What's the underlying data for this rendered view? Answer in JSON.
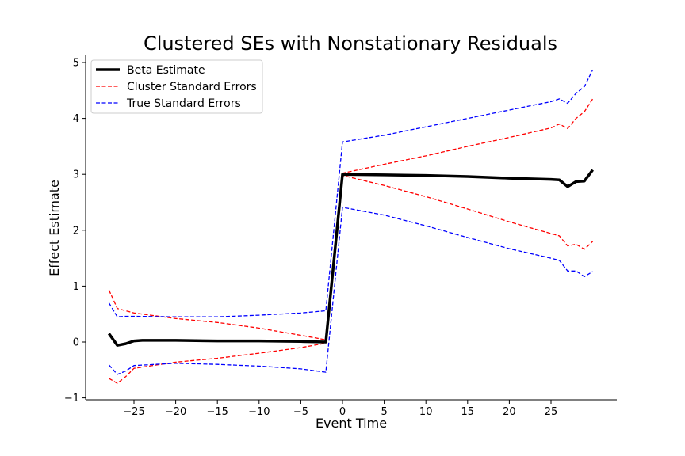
{
  "chart_data": {
    "type": "line",
    "title": "Clustered SEs with Nonstationary Residuals",
    "xlabel": "Event Time",
    "ylabel": "Effect Estimate",
    "xlim": [
      -30,
      33
    ],
    "ylim": [
      -1,
      5.1
    ],
    "xticks": [
      -25,
      -20,
      -15,
      -10,
      -5,
      0,
      5,
      10,
      15,
      20,
      25
    ],
    "xtick_labels": [
      "−25",
      "−20",
      "−15",
      "−10",
      "−5",
      "0",
      "5",
      "10",
      "15",
      "20",
      "25"
    ],
    "yticks": [
      -1,
      0,
      1,
      2,
      3,
      4,
      5
    ],
    "ytick_labels": [
      "−1",
      "0",
      "1",
      "2",
      "3",
      "4",
      "5"
    ],
    "grid": false,
    "legend_position": "top-left",
    "series": [
      {
        "name": "Beta Estimate",
        "color": "#000000",
        "style": "solid",
        "x": [
          -28,
          -27,
          -26,
          -25,
          -24,
          -20,
          -15,
          -10,
          -5,
          -2,
          0,
          5,
          10,
          15,
          20,
          25,
          26,
          27,
          28,
          29,
          30
        ],
        "y": [
          0.15,
          -0.06,
          -0.03,
          0.02,
          0.03,
          0.03,
          0.02,
          0.02,
          0.01,
          0.0,
          3.0,
          2.99,
          2.98,
          2.96,
          2.93,
          2.91,
          2.9,
          2.78,
          2.87,
          2.88,
          3.08
        ]
      },
      {
        "name": "Cluster Standard Errors",
        "color": "#ff0000",
        "style": "dashed",
        "x": [
          -28,
          -27,
          -26,
          -25,
          -20,
          -15,
          -10,
          -5,
          -2,
          0,
          5,
          10,
          15,
          20,
          25,
          26,
          27,
          28,
          29,
          30
        ],
        "y": [
          0.93,
          0.6,
          0.56,
          0.52,
          0.42,
          0.35,
          0.25,
          0.12,
          0.04,
          3.02,
          3.18,
          3.33,
          3.5,
          3.66,
          3.83,
          3.9,
          3.82,
          4.0,
          4.12,
          4.35
        ]
      },
      {
        "name": "",
        "color": "#ff0000",
        "style": "dashed",
        "x": [
          -28,
          -27,
          -26,
          -25,
          -20,
          -15,
          -10,
          -5,
          -2,
          0,
          5,
          10,
          15,
          20,
          25,
          26,
          27,
          28,
          29,
          30
        ],
        "y": [
          -0.65,
          -0.74,
          -0.62,
          -0.47,
          -0.36,
          -0.29,
          -0.2,
          -0.1,
          -0.02,
          2.98,
          2.8,
          2.6,
          2.38,
          2.15,
          1.94,
          1.9,
          1.72,
          1.75,
          1.66,
          1.8
        ]
      },
      {
        "name": "True Standard Errors",
        "color": "#0000ff",
        "style": "dashed",
        "x": [
          -28,
          -27,
          -26,
          -25,
          -20,
          -15,
          -10,
          -5,
          -2,
          0,
          5,
          10,
          15,
          20,
          25,
          26,
          27,
          28,
          29,
          30
        ],
        "y": [
          0.7,
          0.45,
          0.46,
          0.46,
          0.45,
          0.45,
          0.48,
          0.52,
          0.56,
          3.58,
          3.7,
          3.85,
          4.0,
          4.15,
          4.3,
          4.35,
          4.27,
          4.45,
          4.57,
          4.87
        ]
      },
      {
        "name": "",
        "color": "#0000ff",
        "style": "dashed",
        "x": [
          -28,
          -27,
          -26,
          -25,
          -20,
          -15,
          -10,
          -5,
          -2,
          0,
          5,
          10,
          15,
          20,
          25,
          26,
          27,
          28,
          29,
          30
        ],
        "y": [
          -0.41,
          -0.58,
          -0.52,
          -0.42,
          -0.38,
          -0.4,
          -0.43,
          -0.48,
          -0.54,
          2.41,
          2.27,
          2.08,
          1.87,
          1.67,
          1.5,
          1.46,
          1.27,
          1.27,
          1.17,
          1.26
        ]
      }
    ],
    "legend": [
      {
        "label": "Beta Estimate",
        "color": "#000000",
        "style": "solid"
      },
      {
        "label": "Cluster Standard Errors",
        "color": "#ff0000",
        "style": "dashed"
      },
      {
        "label": "True Standard Errors",
        "color": "#0000ff",
        "style": "dashed"
      }
    ]
  }
}
